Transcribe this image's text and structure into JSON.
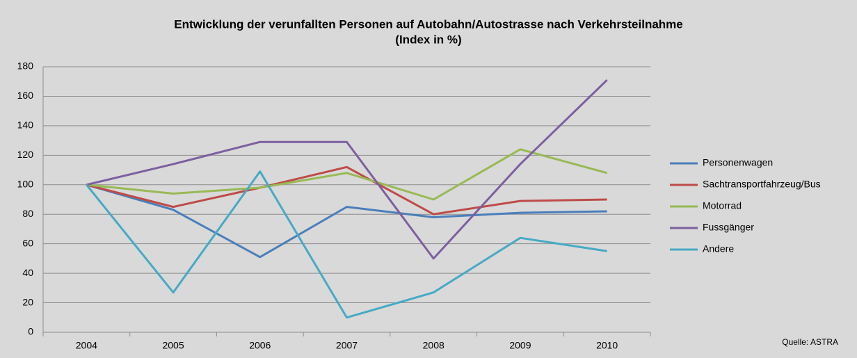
{
  "chart_data": {
    "type": "line",
    "title": "Entwicklung der verunfallten Personen auf Autobahn/Autostrasse nach Verkehrsteilnahme",
    "subtitle": "(Index in %)",
    "source": "Quelle: ASTRA",
    "categories": [
      "2004",
      "2005",
      "2006",
      "2007",
      "2008",
      "2009",
      "2010"
    ],
    "series": [
      {
        "name": "Personenwagen",
        "color": "#4a7ebb",
        "values": [
          100,
          83,
          51,
          85,
          78,
          81,
          82
        ]
      },
      {
        "name": "Sachtransportfahrzeug/Bus",
        "color": "#be4b48",
        "values": [
          100,
          85,
          98,
          112,
          80,
          89,
          90
        ]
      },
      {
        "name": "Motorrad",
        "color": "#98b954",
        "values": [
          100,
          94,
          98,
          108,
          90,
          124,
          108
        ]
      },
      {
        "name": "Fussgänger",
        "color": "#7d5fa0",
        "values": [
          100,
          114,
          129,
          129,
          50,
          114,
          171
        ]
      },
      {
        "name": "Andere",
        "color": "#46aac5",
        "values": [
          100,
          27,
          109,
          10,
          27,
          64,
          55
        ]
      }
    ],
    "ylim": [
      0,
      180
    ],
    "yticks": [
      0,
      20,
      40,
      60,
      80,
      100,
      120,
      140,
      160,
      180
    ],
    "grid": true,
    "legend": "right"
  }
}
